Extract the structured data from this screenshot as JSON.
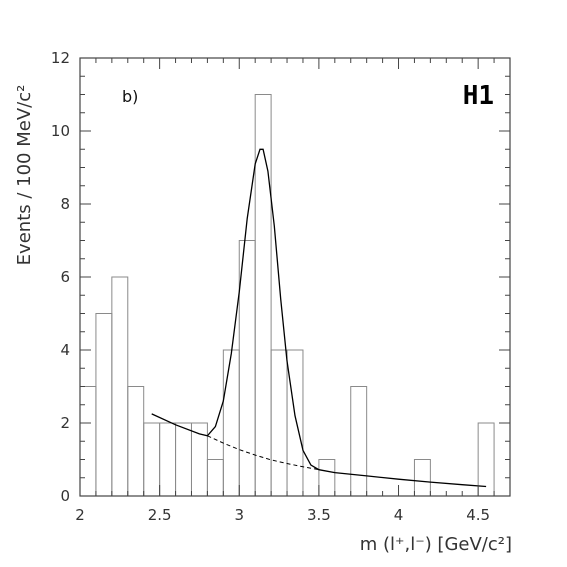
{
  "chart_data": {
    "type": "bar",
    "panel_label": "b)",
    "experiment_label": "H1",
    "xlabel": "m (l⁺,l⁻)  [GeV/c²]",
    "ylabel": "Events / 100 MeV/c²",
    "xlim": [
      2.0,
      4.7
    ],
    "ylim": [
      0,
      12
    ],
    "x_ticks": [
      "2",
      "2.5",
      "3",
      "3.5",
      "4",
      "4.5"
    ],
    "y_ticks": [
      "0",
      "2",
      "4",
      "6",
      "8",
      "10",
      "12"
    ],
    "histogram": {
      "bin_width": 0.1,
      "bin_edges_start": 2.0,
      "values": [
        3,
        5,
        6,
        3,
        2,
        2,
        2,
        2,
        1,
        4,
        7,
        11,
        4,
        4,
        0,
        1,
        0,
        3,
        0,
        0,
        0,
        1,
        0,
        0,
        0,
        2
      ]
    },
    "fit_curve": {
      "name": "fit",
      "x": [
        2.45,
        2.6,
        2.75,
        2.8,
        2.85,
        2.9,
        2.95,
        3.0,
        3.05,
        3.1,
        3.13,
        3.15,
        3.18,
        3.22,
        3.26,
        3.3,
        3.35,
        3.4,
        3.45,
        3.5,
        3.6,
        3.8,
        4.0,
        4.2,
        4.4,
        4.55
      ],
      "y": [
        2.25,
        1.95,
        1.7,
        1.65,
        1.9,
        2.6,
        3.9,
        5.6,
        7.6,
        9.1,
        9.5,
        9.5,
        8.9,
        7.4,
        5.4,
        3.7,
        2.2,
        1.25,
        0.85,
        0.72,
        0.64,
        0.55,
        0.46,
        0.38,
        0.31,
        0.26
      ]
    },
    "background_curve": {
      "name": "background",
      "style": "dashed",
      "x": [
        2.8,
        2.9,
        3.0,
        3.1,
        3.2,
        3.3,
        3.4,
        3.5
      ],
      "y": [
        1.65,
        1.45,
        1.27,
        1.12,
        0.99,
        0.89,
        0.8,
        0.72
      ]
    },
    "grid": false,
    "legend": "none"
  }
}
